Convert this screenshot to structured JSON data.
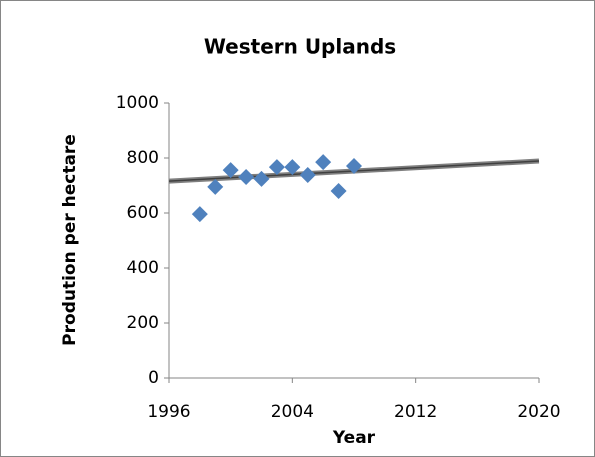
{
  "chart_data": {
    "type": "scatter",
    "title": "Western Uplands",
    "x_label": "Year",
    "y_label": "Prodution per hectare",
    "series": [
      {
        "x": [
          1998,
          1999,
          2000,
          2001,
          2002,
          2003,
          2004,
          2005,
          2006,
          2007,
          2008
        ],
        "values": [
          596,
          695,
          756,
          731,
          724,
          767,
          767,
          738,
          785,
          680,
          771
        ],
        "color": "#4f81bd"
      }
    ],
    "trendline": {
      "x": [
        1996,
        2020
      ],
      "values": [
        716,
        789
      ],
      "color": "#7f7f7f"
    },
    "xlim": [
      1996,
      2020
    ],
    "xticks": [
      1996,
      2004,
      2012,
      2020
    ],
    "ylim": [
      0,
      1000
    ],
    "yticks": [
      0,
      200,
      400,
      600,
      800,
      1000
    ],
    "grid": false
  }
}
